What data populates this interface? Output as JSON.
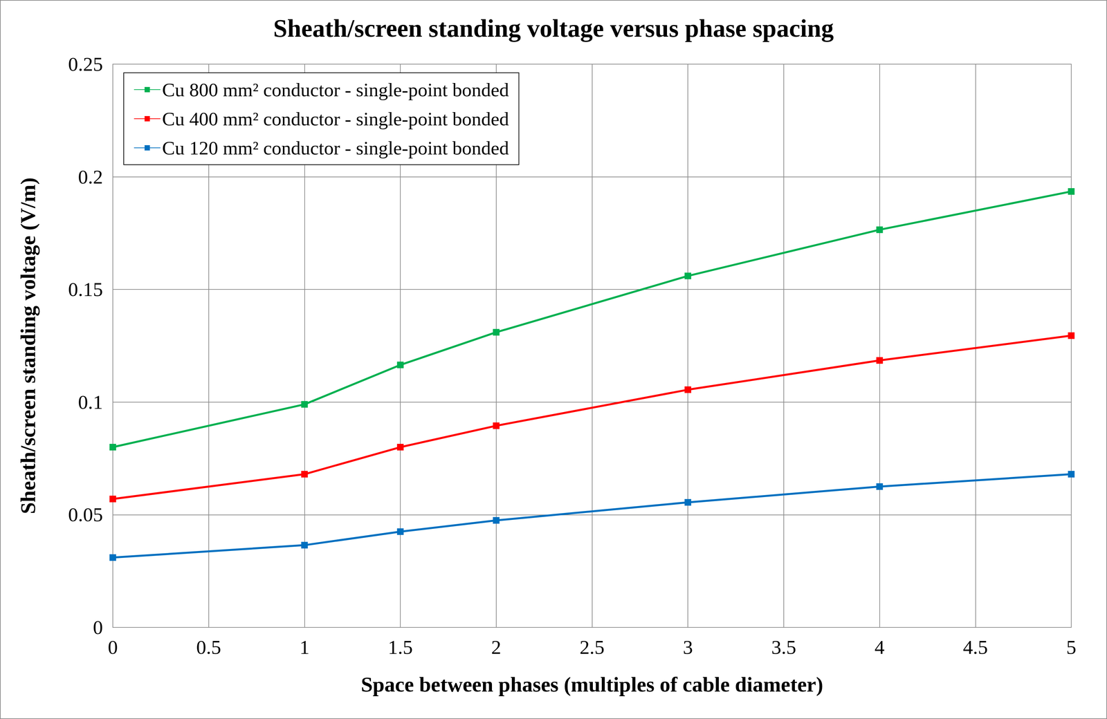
{
  "chart_data": {
    "type": "line",
    "title": "Sheath/screen standing voltage versus phase spacing",
    "x_label": "Space between phases (multiples of cable diameter)",
    "y_label": "Sheath/screen standing voltage (V/m)",
    "x": [
      0,
      1,
      1.5,
      2,
      3,
      4,
      5
    ],
    "series": [
      {
        "name": "Cu 800 mm² conductor - single-point bonded",
        "color": "#00b050",
        "marker": "square",
        "values": [
          0.08,
          0.099,
          0.1165,
          0.131,
          0.156,
          0.1765,
          0.1935
        ]
      },
      {
        "name": "Cu 400 mm² conductor - single-point bonded",
        "color": "#ff0000",
        "marker": "square",
        "values": [
          0.057,
          0.068,
          0.08,
          0.0895,
          0.1055,
          0.1185,
          0.1295
        ]
      },
      {
        "name": "Cu 120 mm² conductor - single-point bonded",
        "color": "#0070c0",
        "marker": "square",
        "values": [
          0.031,
          0.0365,
          0.0425,
          0.0475,
          0.0555,
          0.0625,
          0.068
        ]
      }
    ],
    "xlim": [
      0,
      5
    ],
    "xticks": [
      0,
      0.5,
      1,
      1.5,
      2,
      2.5,
      3,
      3.5,
      4,
      4.5,
      5
    ],
    "ylim": [
      0,
      0.25
    ],
    "yticks": [
      0,
      0.05,
      0.1,
      0.15,
      0.2,
      0.25
    ],
    "grid": true,
    "legend": "upper left"
  }
}
